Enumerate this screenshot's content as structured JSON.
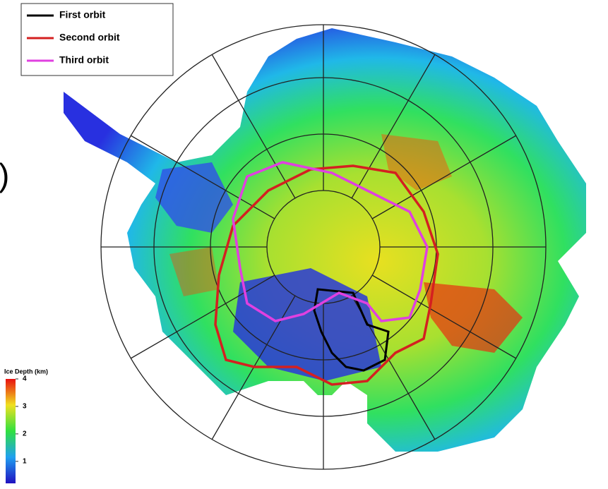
{
  "fragment": ")",
  "legend": {
    "entries": [
      {
        "label": "First orbit",
        "color": "#000000"
      },
      {
        "label": "Second orbit",
        "color": "#d42020"
      },
      {
        "label": "Third orbit",
        "color": "#e040e0"
      }
    ]
  },
  "colorbar": {
    "title": "Ice Depth (km)",
    "range": [
      0.2,
      4
    ],
    "ticks": [
      1,
      2,
      3,
      4
    ]
  }
}
